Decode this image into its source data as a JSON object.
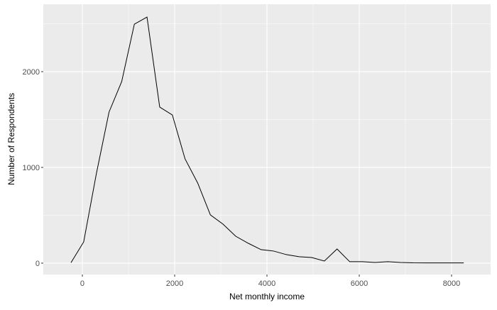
{
  "chart_data": {
    "type": "line",
    "x_label": "Net monthly income",
    "y_label": "Number of Respondents",
    "x": [
      -246,
      29,
      303,
      578,
      852,
      1127,
      1401,
      1676,
      1950,
      2225,
      2499,
      2774,
      3048,
      3323,
      3597,
      3872,
      4146,
      4421,
      4695,
      4970,
      5244,
      5519,
      5793,
      6068,
      6342,
      6617,
      6891,
      7166,
      7440,
      7715,
      7989,
      8264
    ],
    "series": [
      {
        "name": "respondents",
        "color": "#000000",
        "values": [
          5,
          222,
          933,
          1578,
          1896,
          2496,
          2570,
          1630,
          1548,
          1089,
          837,
          504,
          407,
          281,
          207,
          141,
          126,
          89,
          67,
          59,
          22,
          148,
          15,
          15,
          7,
          15,
          7,
          3,
          2,
          2,
          2,
          2
        ]
      }
    ],
    "xlim": [
      -846,
      8846
    ],
    "ylim": [
      -119,
      2704
    ],
    "xticks": [
      0,
      2000,
      4000,
      6000,
      8000
    ],
    "yticks": [
      0,
      1000,
      2000
    ],
    "grid": true
  }
}
